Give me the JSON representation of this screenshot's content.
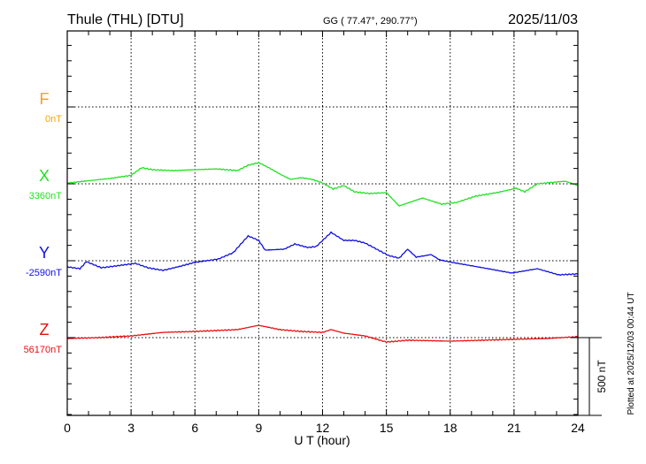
{
  "header": {
    "station": "Thule (THL)  [DTU]",
    "coords": "GG ( 77.47°, 290.77°)",
    "date": "2025/11/03"
  },
  "footer": {
    "plotted": "Plotted at 2025/12/03 00:44 UT",
    "scale_label": "500 nT"
  },
  "chart_data": {
    "type": "line",
    "xlabel": "U T (hour)",
    "xlim": [
      0,
      24
    ],
    "xticks": [
      "0",
      "3",
      "6",
      "9",
      "12",
      "15",
      "18",
      "21",
      "24"
    ],
    "scale_bar_nT": 500,
    "grid": true,
    "series": [
      {
        "name": "F",
        "baseline_label": "0nT",
        "color": "#f5a800",
        "points": []
      },
      {
        "name": "X",
        "baseline_label": "3360nT",
        "color": "#22e022",
        "points": [
          [
            0,
            5
          ],
          [
            1,
            20
          ],
          [
            2,
            35
          ],
          [
            3,
            55
          ],
          [
            3.5,
            105
          ],
          [
            4,
            92
          ],
          [
            5,
            86
          ],
          [
            6,
            92
          ],
          [
            7,
            97
          ],
          [
            8,
            86
          ],
          [
            8.5,
            121
          ],
          [
            9,
            138
          ],
          [
            9.5,
            103
          ],
          [
            10,
            63
          ],
          [
            10.5,
            29
          ],
          [
            11,
            40
          ],
          [
            11.5,
            29
          ],
          [
            12,
            6
          ],
          [
            12.5,
            -34
          ],
          [
            13,
            -11
          ],
          [
            13.5,
            -52
          ],
          [
            14.2,
            -63
          ],
          [
            15,
            -57
          ],
          [
            15.6,
            -144
          ],
          [
            16.7,
            -92
          ],
          [
            17.6,
            -132
          ],
          [
            18.3,
            -121
          ],
          [
            19.2,
            -80
          ],
          [
            20.2,
            -57
          ],
          [
            21.1,
            -29
          ],
          [
            21.5,
            -52
          ],
          [
            22.1,
            0
          ],
          [
            23.4,
            17
          ],
          [
            24,
            -11
          ]
        ]
      },
      {
        "name": "Y",
        "baseline_label": "-2590nT",
        "color": "#1010e0",
        "points": [
          [
            0,
            -40
          ],
          [
            0.6,
            -52
          ],
          [
            0.9,
            -6
          ],
          [
            1.6,
            -46
          ],
          [
            2.3,
            -34
          ],
          [
            3.2,
            -17
          ],
          [
            3.8,
            -46
          ],
          [
            4.5,
            -63
          ],
          [
            5.2,
            -40
          ],
          [
            6,
            -11
          ],
          [
            7.1,
            11
          ],
          [
            7.8,
            52
          ],
          [
            8.5,
            161
          ],
          [
            9,
            132
          ],
          [
            9.3,
            69
          ],
          [
            10.2,
            75
          ],
          [
            10.7,
            109
          ],
          [
            11.3,
            86
          ],
          [
            11.7,
            92
          ],
          [
            12.4,
            184
          ],
          [
            13,
            132
          ],
          [
            13.5,
            132
          ],
          [
            14,
            115
          ],
          [
            15.1,
            34
          ],
          [
            15.6,
            17
          ],
          [
            16,
            75
          ],
          [
            16.4,
            23
          ],
          [
            17.1,
            40
          ],
          [
            17.5,
            6
          ],
          [
            18.1,
            -11
          ],
          [
            19.3,
            -40
          ],
          [
            20.9,
            -80
          ],
          [
            22.1,
            -52
          ],
          [
            23.1,
            -92
          ],
          [
            24,
            -86
          ]
        ]
      },
      {
        "name": "Z",
        "baseline_label": "56170nT",
        "color": "#e81010",
        "points": [
          [
            0,
            -6
          ],
          [
            1.5,
            0
          ],
          [
            3,
            11
          ],
          [
            4.5,
            34
          ],
          [
            6,
            40
          ],
          [
            8,
            52
          ],
          [
            9,
            80
          ],
          [
            10,
            52
          ],
          [
            11,
            40
          ],
          [
            12,
            34
          ],
          [
            12.4,
            52
          ],
          [
            13,
            29
          ],
          [
            14,
            11
          ],
          [
            15,
            -29
          ],
          [
            16,
            -17
          ],
          [
            18,
            -23
          ],
          [
            19.5,
            -17
          ],
          [
            21,
            -11
          ],
          [
            22.5,
            -6
          ],
          [
            24,
            6
          ]
        ]
      }
    ]
  }
}
